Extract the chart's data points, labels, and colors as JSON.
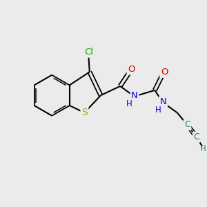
{
  "bg_color": "#ebebeb",
  "colors": {
    "bond": "#000000",
    "N": "#0000cc",
    "O": "#cc0000",
    "S": "#b8a000",
    "Cl": "#00aa00",
    "alkyne": "#2a7a7a"
  },
  "figsize": [
    3.0,
    3.0
  ],
  "dpi": 100,
  "xlim": [
    0,
    10
  ],
  "ylim": [
    0,
    10
  ]
}
